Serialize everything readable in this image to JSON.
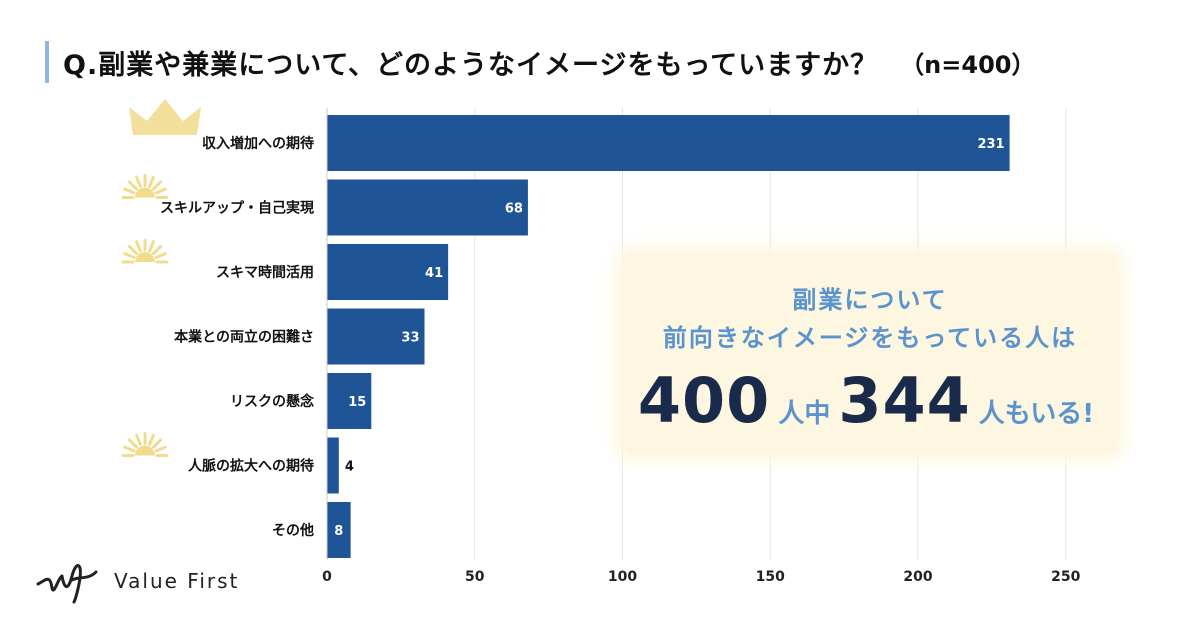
{
  "title": {
    "question": "Q.副業や兼業について、どのようなイメージをもっていますか？",
    "sample_size": "（n=400）"
  },
  "callout": {
    "line1": "副業について",
    "line2": "前向きなイメージをもっている人は",
    "total": "400",
    "middle": "人中",
    "count": "344",
    "suffix": "人もいる!"
  },
  "logo": {
    "text": "Value First",
    "icon": "wf-signature-logo"
  },
  "colors": {
    "bar": "#1f5596",
    "grid": "#e3e3e3",
    "accent": "#5b93cf",
    "crown": "#f0d98a",
    "sun": "#f1dc8e"
  },
  "chart_data": {
    "type": "bar",
    "orientation": "horizontal",
    "categories": [
      "収入増加への期待",
      "スキルアップ・自己実現",
      "スキマ時間活用",
      "本業との両立の困難さ",
      "リスクの懸念",
      "人脈の拡大への期待",
      "その他"
    ],
    "values": [
      231,
      68,
      41,
      33,
      15,
      4,
      8
    ],
    "x_ticks": [
      0,
      50,
      100,
      150,
      200,
      250
    ],
    "xlim": [
      0,
      250
    ],
    "xlabel": "",
    "ylabel": "",
    "grid": "vertical",
    "decorations": [
      {
        "category_index": 0,
        "icon": "crown-icon"
      },
      {
        "category_index": 1,
        "icon": "sun-icon"
      },
      {
        "category_index": 2,
        "icon": "sun-icon"
      },
      {
        "category_index": 5,
        "icon": "sun-icon"
      }
    ]
  }
}
